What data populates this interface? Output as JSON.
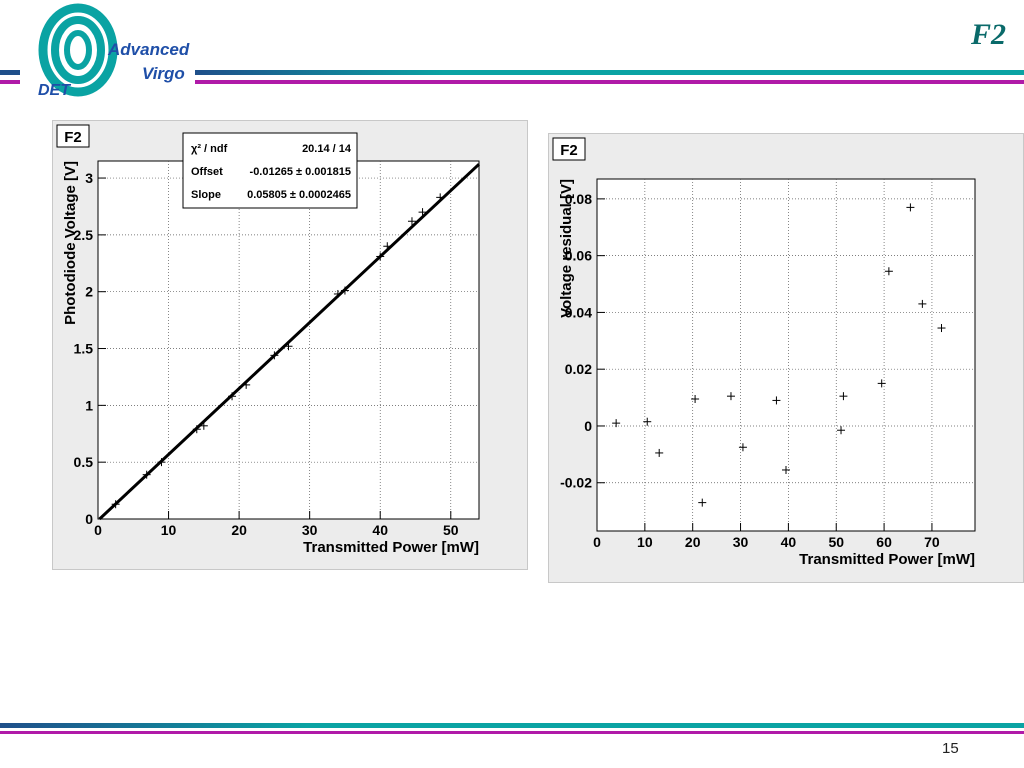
{
  "header": {
    "logo_words": [
      "Advanced",
      "Virgo",
      "DET"
    ],
    "title": "F2",
    "colors": {
      "teal": "#0aa3a3",
      "magenta": "#b01aa8",
      "navy": "#1f4f8a"
    }
  },
  "footer": {
    "page_number": "15"
  },
  "chart_data": [
    {
      "type": "scatter",
      "panel_label": "F2",
      "xlabel": "Transmitted Power [mW]",
      "ylabel": "Photodiode Voltage [V]",
      "xlim": [
        0,
        54
      ],
      "ylim": [
        0,
        3.15
      ],
      "xticks": [
        "0",
        "10",
        "20",
        "30",
        "40",
        "50"
      ],
      "yticks": [
        "0",
        "0.5",
        "1",
        "1.5",
        "2",
        "2.5",
        "3"
      ],
      "grid": true,
      "stats_box": {
        "rows": [
          {
            "label": "χ² / ndf",
            "value": "20.14 / 14"
          },
          {
            "label": "Offset",
            "value": "-0.01265 ± 0.001815"
          },
          {
            "label": "Slope",
            "value": "0.05805 ± 0.0002465"
          }
        ]
      },
      "fit_line": {
        "offset": -0.01265,
        "slope": 0.05805
      },
      "points": [
        {
          "x": 2.5,
          "y": 0.13
        },
        {
          "x": 6.9,
          "y": 0.39
        },
        {
          "x": 9.0,
          "y": 0.5
        },
        {
          "x": 14.0,
          "y": 0.79
        },
        {
          "x": 15.0,
          "y": 0.82
        },
        {
          "x": 19.0,
          "y": 1.08
        },
        {
          "x": 21.0,
          "y": 1.18
        },
        {
          "x": 25.0,
          "y": 1.44
        },
        {
          "x": 27.0,
          "y": 1.52
        },
        {
          "x": 34.0,
          "y": 1.98
        },
        {
          "x": 35.0,
          "y": 2.01
        },
        {
          "x": 40.0,
          "y": 2.31
        },
        {
          "x": 41.0,
          "y": 2.4
        },
        {
          "x": 44.5,
          "y": 2.62
        },
        {
          "x": 46.0,
          "y": 2.7
        },
        {
          "x": 48.5,
          "y": 2.83
        }
      ]
    },
    {
      "type": "scatter",
      "panel_label": "F2",
      "xlabel": "Transmitted Power [mW]",
      "ylabel": "Voltage residual [V]",
      "xlim": [
        0,
        79
      ],
      "ylim": [
        -0.037,
        0.087
      ],
      "xticks": [
        "0",
        "10",
        "20",
        "30",
        "40",
        "50",
        "60",
        "70"
      ],
      "yticks": [
        "-0.02",
        "0",
        "0.02",
        "0.04",
        "0.06",
        "0.08"
      ],
      "grid": true,
      "points": [
        {
          "x": 4.0,
          "y": 0.001
        },
        {
          "x": 10.5,
          "y": 0.0015
        },
        {
          "x": 13.0,
          "y": -0.0095
        },
        {
          "x": 20.5,
          "y": 0.0095
        },
        {
          "x": 22.0,
          "y": -0.027
        },
        {
          "x": 28.0,
          "y": 0.0105
        },
        {
          "x": 30.5,
          "y": -0.0075
        },
        {
          "x": 37.5,
          "y": 0.009
        },
        {
          "x": 39.5,
          "y": -0.0155
        },
        {
          "x": 51.0,
          "y": -0.0015
        },
        {
          "x": 51.5,
          "y": 0.0105
        },
        {
          "x": 59.5,
          "y": 0.015
        },
        {
          "x": 61.0,
          "y": 0.0545
        },
        {
          "x": 65.5,
          "y": 0.077
        },
        {
          "x": 68.0,
          "y": 0.043
        },
        {
          "x": 72.0,
          "y": 0.0345
        }
      ]
    }
  ]
}
